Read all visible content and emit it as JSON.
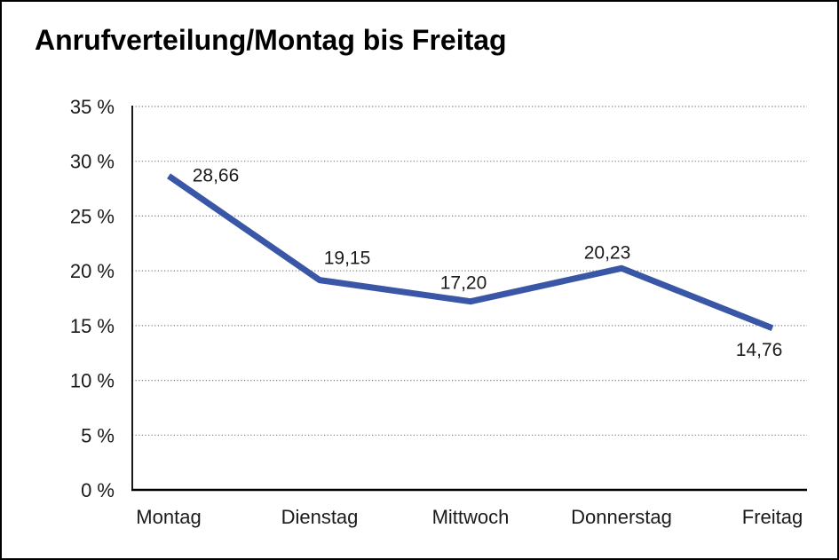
{
  "frame": {
    "background": "#ffffff",
    "border_color": "#000000"
  },
  "title": "Anrufverteilung/Montag bis Freitag",
  "chart_data": {
    "type": "line",
    "title": "Anrufverteilung/Montag bis Freitag",
    "categories": [
      "Montag",
      "Dienstag",
      "Mittwoch",
      "Donnerstag",
      "Freitag"
    ],
    "series": [
      {
        "name": "Anrufverteilung",
        "values": [
          28.66,
          19.15,
          17.2,
          20.23,
          14.76
        ],
        "value_labels": [
          "28,66",
          "19,15",
          "17,20",
          "20,23",
          "14,76"
        ]
      }
    ],
    "unit": "%",
    "ylim": [
      0,
      35
    ],
    "ytick_step": 5,
    "ytick_labels": [
      "0 %",
      "5 %",
      "10 %",
      "15 %",
      "20 %",
      "25 %",
      "30 %",
      "35 %"
    ],
    "grid": "horizontal-dotted",
    "legend": "none",
    "colors": {
      "line": "#3957A6",
      "text": "#1a1a1a",
      "grid": "#7d7d7d",
      "axis": "#000000"
    }
  }
}
